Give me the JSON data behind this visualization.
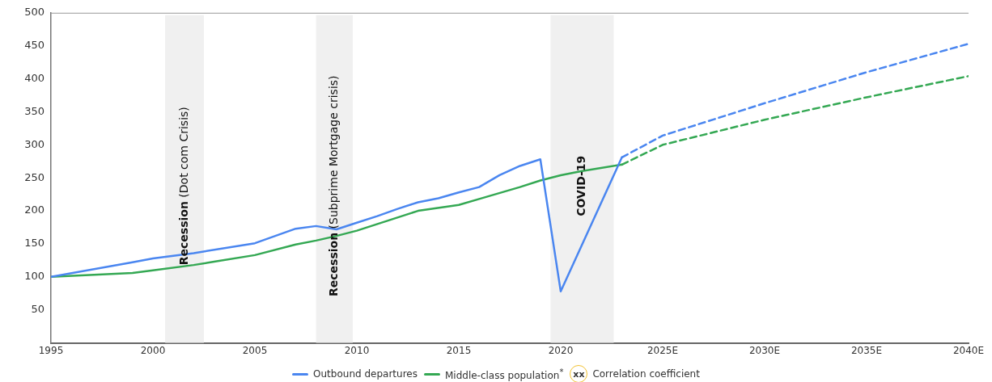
{
  "chart_data": {
    "type": "line",
    "xlim": [
      1995,
      2040
    ],
    "xticks": [
      1995,
      2000,
      2005,
      2010,
      2015,
      2020,
      {
        "value": 2025,
        "label": "2025E"
      },
      {
        "value": 2030,
        "label": "2030E"
      },
      {
        "value": 2035,
        "label": "2035E"
      },
      {
        "value": 2040,
        "label": "2040E"
      }
    ],
    "ylim": [
      0,
      500
    ],
    "yticks": [
      50,
      100,
      150,
      200,
      250,
      300,
      350,
      400,
      450,
      500
    ],
    "grid": false,
    "legend": "bottom",
    "marker": "none",
    "series": [
      {
        "name": "Outbound departures",
        "color": "#4a86f0",
        "line_style": "solid",
        "x": [
          1995,
          1999,
          2000,
          2002,
          2005,
          2007,
          2008,
          2009,
          2010,
          2011,
          2012,
          2013,
          2014,
          2015,
          2016,
          2017,
          2018,
          2019,
          2020,
          2023
        ],
        "values": [
          100,
          122,
          128,
          136,
          151,
          173,
          177,
          172,
          182,
          192,
          203,
          213,
          219,
          228,
          236,
          254,
          268,
          278,
          78,
          281
        ]
      },
      {
        "name": "Middle-class population$^{*}$",
        "color": "#34a853",
        "line_style": "solid",
        "x": [
          1995,
          1999,
          2000,
          2002,
          2003,
          2005,
          2007,
          2008,
          2009,
          2010,
          2013,
          2015,
          2016,
          2018,
          2019,
          2020,
          2021,
          2023
        ],
        "values": [
          100,
          106,
          110,
          118,
          123,
          133,
          149,
          155,
          162,
          170,
          200,
          209,
          218,
          236,
          246,
          254,
          260,
          270
        ]
      },
      {
        "color": "#4a86f0",
        "line_style": "dashed",
        "x": [
          2023,
          2025,
          2030,
          2035,
          2040
        ],
        "values": [
          281,
          314,
          363,
          410,
          453
        ]
      },
      {
        "color": "#34a853",
        "line_style": "dashed",
        "x": [
          2023,
          2025,
          2030,
          2035,
          2040
        ],
        "values": [
          270,
          300,
          338,
          372,
          404
        ]
      }
    ],
    "bands": [
      {
        "axis": "x",
        "from": 2000.6,
        "to": 2002.5,
        "label": "Recession (Dot com Crisis)",
        "color": "#f0f0f0"
      },
      {
        "axis": "x",
        "from": 2008,
        "to": 2009.8,
        "label": "Recession (Subprime Mortgage crisis)",
        "color": "#f0f0f0"
      },
      {
        "axis": "x",
        "from": 2019.5,
        "to": 2022.6,
        "label": "COVID-19",
        "color": "#f0f0f0"
      }
    ],
    "annotations": [
      "xx",
      "Correlation coefficient"
    ]
  }
}
